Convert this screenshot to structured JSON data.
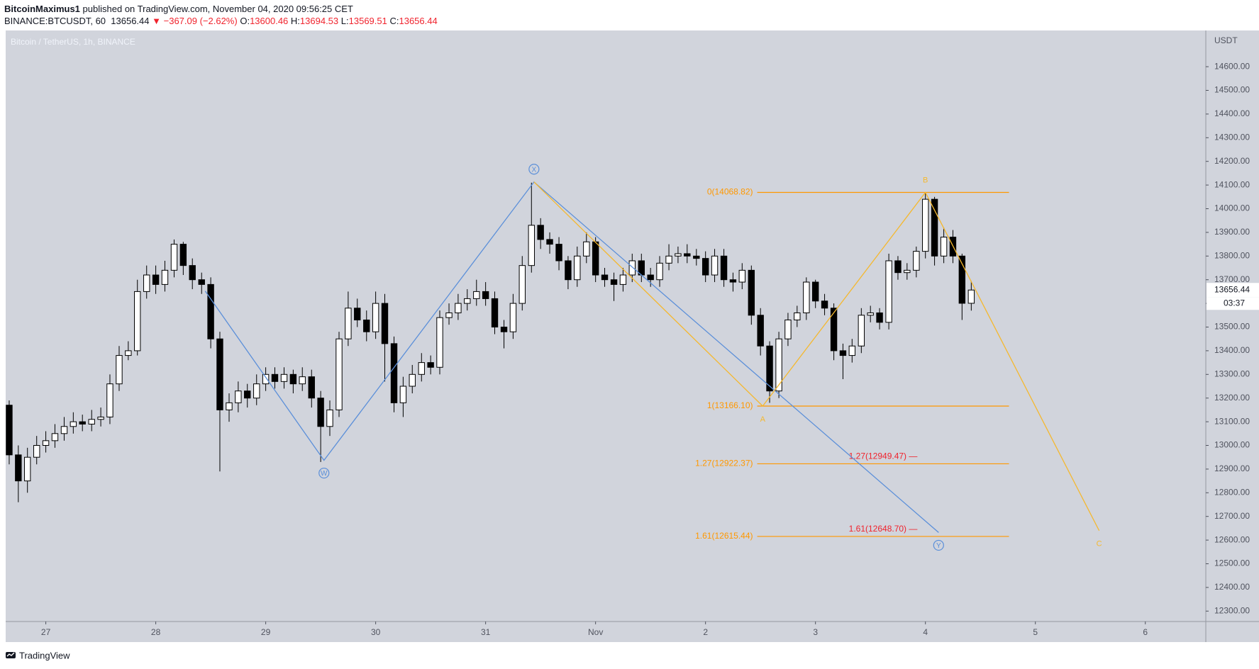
{
  "header": {
    "author": "BitcoinMaximus1",
    "published": "published on TradingView.com, November 04, 2020 09:56:25 CET",
    "symbol": "BINANCE:BTCUSDT, 60",
    "last": "13656.44",
    "change": "▼ −367.09 (−2.62%)",
    "ohlc": [
      {
        "key": "O:",
        "value": "13600.46"
      },
      {
        "key": "H:",
        "value": "13694.53"
      },
      {
        "key": "L:",
        "value": "13569.51"
      },
      {
        "key": "C:",
        "value": "13656.44"
      }
    ]
  },
  "chart_data": {
    "type": "candlestick",
    "title": "Bitcoin / TetherUS, 1h, BINANCE",
    "y_unit": "USDT",
    "countdown": "03:37",
    "up_color": "#ffffff",
    "down_color": "#000000",
    "grid": false,
    "x": [
      -0.333,
      -0.25,
      -0.167,
      -0.083,
      0,
      0.083,
      0.167,
      0.25,
      0.333,
      0.417,
      0.5,
      0.583,
      0.667,
      0.75,
      0.833,
      0.917,
      1,
      1.083,
      1.167,
      1.25,
      1.333,
      1.417,
      1.5,
      1.583,
      1.667,
      1.75,
      1.833,
      1.917,
      2,
      2.083,
      2.167,
      2.25,
      2.333,
      2.417,
      2.5,
      2.583,
      2.667,
      2.75,
      2.833,
      2.917,
      3,
      3.083,
      3.167,
      3.25,
      3.333,
      3.417,
      3.5,
      3.583,
      3.667,
      3.75,
      3.833,
      3.917,
      4,
      4.083,
      4.167,
      4.25,
      4.333,
      4.417,
      4.5,
      4.583,
      4.667,
      4.75,
      4.833,
      4.917,
      5,
      5.083,
      5.167,
      5.25,
      5.333,
      5.417,
      5.5,
      5.583,
      5.667,
      5.75,
      5.833,
      5.917,
      6,
      6.083,
      6.167,
      6.25,
      6.333,
      6.417,
      6.5,
      6.583,
      6.667,
      6.75,
      6.833,
      6.917,
      7,
      7.083,
      7.167,
      7.25,
      7.333,
      7.417,
      7.5,
      7.583,
      7.667,
      7.75,
      7.833,
      7.917,
      8,
      8.083,
      8.167,
      8.25,
      8.333,
      8.417
    ],
    "open": [
      13170,
      12960,
      12850,
      12950,
      13000,
      13020,
      13050,
      13080,
      13100,
      13090,
      13110,
      13120,
      13260,
      13380,
      13400,
      13650,
      13720,
      13680,
      13740,
      13850,
      13760,
      13700,
      13680,
      13450,
      13150,
      13180,
      13230,
      13200,
      13260,
      13300,
      13270,
      13300,
      13260,
      13290,
      13200,
      13080,
      13150,
      13450,
      13580,
      13530,
      13480,
      13600,
      13430,
      13180,
      13250,
      13300,
      13350,
      13330,
      13540,
      13560,
      13600,
      13620,
      13650,
      13620,
      13500,
      13480,
      13600,
      13760,
      13930,
      13870,
      13850,
      13780,
      13700,
      13800,
      13860,
      13720,
      13700,
      13680,
      13720,
      13780,
      13720,
      13700,
      13770,
      13800,
      13810,
      13800,
      13790,
      13720,
      13800,
      13700,
      13690,
      13740,
      13550,
      13420,
      13230,
      13450,
      13530,
      13560,
      13690,
      13610,
      13580,
      13400,
      13380,
      13420,
      13550,
      13560,
      13520,
      13780,
      13730,
      13740,
      13820,
      14040,
      13800,
      13880,
      13800,
      13600.46
    ],
    "high": [
      13190,
      13000,
      12990,
      13040,
      13060,
      13090,
      13120,
      13140,
      13130,
      13150,
      13160,
      13300,
      13420,
      13440,
      13700,
      13760,
      13760,
      13780,
      13870,
      13860,
      13790,
      13730,
      13710,
      13480,
      13220,
      13270,
      13260,
      13300,
      13330,
      13330,
      13330,
      13320,
      13330,
      13320,
      13230,
      13190,
      13480,
      13650,
      13620,
      13570,
      13650,
      13640,
      13460,
      13290,
      13340,
      13390,
      13380,
      13570,
      13600,
      13640,
      13660,
      13700,
      13690,
      13650,
      13530,
      13640,
      13800,
      14110,
      13960,
      13900,
      13880,
      13800,
      13840,
      13900,
      13880,
      13750,
      13730,
      13750,
      13810,
      13810,
      13750,
      13800,
      13850,
      13840,
      13850,
      13830,
      13820,
      13830,
      13830,
      13730,
      13770,
      13760,
      13580,
      13440,
      13480,
      13560,
      13590,
      13710,
      13700,
      13640,
      13600,
      13430,
      13450,
      13580,
      13590,
      13580,
      13810,
      13800,
      13770,
      13840,
      14068.82,
      14050,
      13920,
      13910,
      13810,
      13694.53
    ],
    "low": [
      12920,
      12760,
      12800,
      12920,
      12970,
      12990,
      13020,
      13050,
      13060,
      13060,
      13080,
      13090,
      13230,
      13360,
      13380,
      13620,
      13640,
      13650,
      13710,
      13720,
      13660,
      13640,
      13410,
      12890,
      13100,
      13140,
      13160,
      13170,
      13230,
      13240,
      13240,
      13220,
      13230,
      13160,
      12930,
      13040,
      13120,
      13420,
      13500,
      13440,
      13450,
      13270,
      13140,
      13120,
      13220,
      13270,
      13300,
      13300,
      13510,
      13530,
      13570,
      13590,
      13590,
      13470,
      13410,
      13450,
      13570,
      13730,
      13830,
      13810,
      13740,
      13660,
      13670,
      13770,
      13690,
      13670,
      13610,
      13650,
      13690,
      13690,
      13670,
      13670,
      13740,
      13770,
      13770,
      13760,
      13690,
      13690,
      13670,
      13650,
      13660,
      13510,
      13380,
      13180,
      13200,
      13420,
      13500,
      13530,
      13580,
      13550,
      13360,
      13280,
      13350,
      13390,
      13520,
      13490,
      13490,
      13700,
      13700,
      13710,
      13790,
      13760,
      13770,
      13770,
      13530,
      13569.51
    ],
    "close": [
      12960,
      12850,
      12950,
      13000,
      13020,
      13050,
      13080,
      13100,
      13090,
      13110,
      13120,
      13260,
      13380,
      13400,
      13650,
      13720,
      13680,
      13740,
      13850,
      13760,
      13700,
      13680,
      13450,
      13150,
      13180,
      13230,
      13200,
      13260,
      13300,
      13270,
      13300,
      13260,
      13290,
      13200,
      13080,
      13150,
      13450,
      13580,
      13530,
      13480,
      13600,
      13430,
      13180,
      13250,
      13300,
      13350,
      13330,
      13540,
      13560,
      13600,
      13620,
      13650,
      13620,
      13500,
      13480,
      13600,
      13760,
      13930,
      13870,
      13850,
      13780,
      13700,
      13800,
      13860,
      13720,
      13700,
      13680,
      13720,
      13780,
      13720,
      13700,
      13770,
      13800,
      13810,
      13800,
      13790,
      13720,
      13800,
      13700,
      13690,
      13740,
      13550,
      13420,
      13230,
      13450,
      13530,
      13560,
      13690,
      13610,
      13580,
      13400,
      13380,
      13420,
      13550,
      13560,
      13520,
      13780,
      13730,
      13740,
      13820,
      14040,
      13800,
      13880,
      13800,
      13600.46,
      13656.44
    ],
    "xlim": [
      -0.365,
      10.55
    ],
    "ylim": [
      12256,
      14753
    ],
    "xticks": [
      {
        "value": 0,
        "label": "27"
      },
      {
        "value": 1,
        "label": "28"
      },
      {
        "value": 2,
        "label": "29"
      },
      {
        "value": 3,
        "label": "30"
      },
      {
        "value": 4,
        "label": "31"
      },
      {
        "value": 5,
        "label": "Nov"
      },
      {
        "value": 6,
        "label": "2"
      },
      {
        "value": 7,
        "label": "3"
      },
      {
        "value": 8,
        "label": "4"
      },
      {
        "value": 9,
        "label": "5"
      },
      {
        "value": 10,
        "label": "6"
      }
    ],
    "yticks": [
      {
        "value": 12300,
        "label": "12300.00"
      },
      {
        "value": 12400,
        "label": "12400.00"
      },
      {
        "value": 12500,
        "label": "12500.00"
      },
      {
        "value": 12600,
        "label": "12600.00"
      },
      {
        "value": 12700,
        "label": "12700.00"
      },
      {
        "value": 12800,
        "label": "12800.00"
      },
      {
        "value": 12900,
        "label": "12900.00"
      },
      {
        "value": 13000,
        "label": "13000.00"
      },
      {
        "value": 13100,
        "label": "13100.00"
      },
      {
        "value": 13200,
        "label": "13200.00"
      },
      {
        "value": 13300,
        "label": "13300.00"
      },
      {
        "value": 13400,
        "label": "13400.00"
      },
      {
        "value": 13500,
        "label": "13500.00"
      },
      {
        "value": 13600,
        "label": "13600.00"
      },
      {
        "value": 13700,
        "label": "13700.00"
      },
      {
        "value": 13800,
        "label": "13800.00"
      },
      {
        "value": 13900,
        "label": "13900.00"
      },
      {
        "value": 14000,
        "label": "14000.00"
      },
      {
        "value": 14100,
        "label": "14100.00"
      },
      {
        "value": 14200,
        "label": "14200.00"
      },
      {
        "value": 14300,
        "label": "14300.00"
      },
      {
        "value": 14400,
        "label": "14400.00"
      },
      {
        "value": 14500,
        "label": "14500.00"
      },
      {
        "value": 14600,
        "label": "14600.00"
      }
    ],
    "wave_wxy": {
      "color": "#5b8fd9",
      "x": [
        1.45,
        2.53,
        4.44,
        8.12
      ],
      "y": [
        13652,
        12937,
        14113,
        12632
      ],
      "labels": [
        null,
        "W",
        "X",
        "Y"
      ]
    },
    "wave_abc": {
      "color": "#f5b82e",
      "x": [
        4.44,
        6.52,
        8.0,
        9.58
      ],
      "y": [
        14113,
        13166.1,
        14068.82,
        12640
      ],
      "labels": [
        null,
        "A",
        "B",
        "C"
      ]
    },
    "fib_color": "#ff9800",
    "fib_range": [
      6.47,
      8.76
    ],
    "fib_levels": [
      {
        "value": 14068.82,
        "label": "0(14068.82)"
      },
      {
        "value": 13166.1,
        "label": "1(13166.10)"
      },
      {
        "value": 12922.37,
        "label": "1.27(12922.37)"
      },
      {
        "value": 12615.44,
        "label": "1.61(12615.44)"
      }
    ],
    "annotation_color": "#f0232d",
    "annotations": [
      "1.27(12949.47) —",
      "1.61(12648.70) —"
    ]
  },
  "footer": {
    "brand": "TradingView"
  }
}
